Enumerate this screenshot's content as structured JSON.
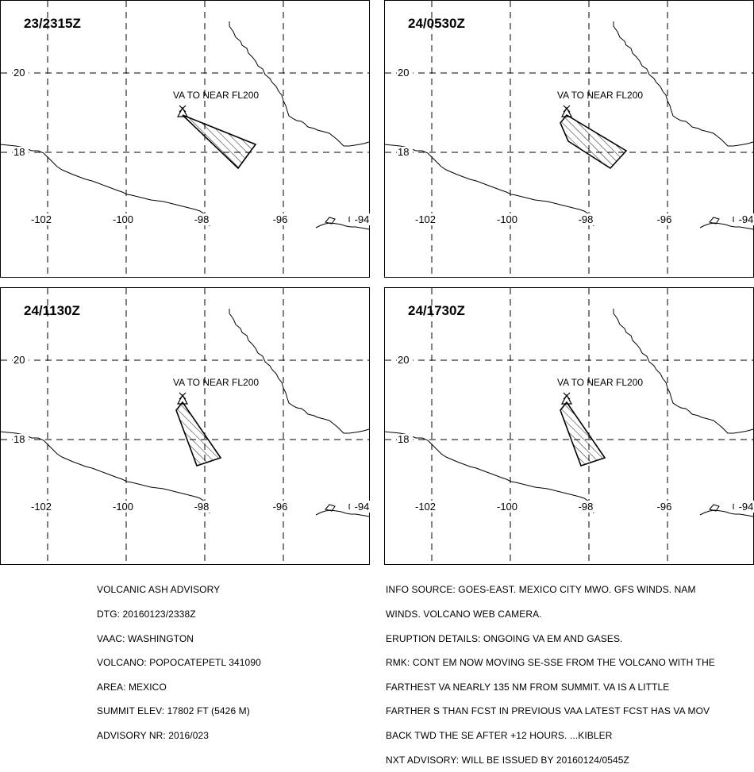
{
  "panels": [
    {
      "time": "23/2315Z"
    },
    {
      "time": "24/0530Z"
    },
    {
      "time": "24/1130Z"
    },
    {
      "time": "24/1730Z"
    }
  ],
  "map": {
    "lat_labels": [
      "20",
      "18"
    ],
    "lon_labels": [
      "-102",
      "-100",
      "-98",
      "-96",
      "-94"
    ],
    "va_label": "VA TO NEAR FL200"
  },
  "advisory_left": [
    "VOLCANIC ASH ADVISORY",
    "DTG: 20160123/2338Z",
    "VAAC: WASHINGTON",
    "VOLCANO: POPOCATEPETL 341090",
    "AREA: MEXICO",
    "SUMMIT ELEV: 17802 FT (5426 M)",
    "ADVISORY NR: 2016/023"
  ],
  "advisory_right": [
    "INFO SOURCE: GOES-EAST. MEXICO CITY MWO. GFS WINDS. NAM",
    "WINDS. VOLCANO WEB CAMERA.",
    "ERUPTION DETAILS: ONGOING VA EM AND GASES.",
    "RMK: CONT EM NOW MOVING SE-SSE FROM THE VOLCANO WITH THE",
    "FARTHEST VA NEARLY 135 NM FROM SUMMIT. VA IS A LITTLE",
    "FARTHER S THAN FCST IN PREVIOUS VAA LATEST FCST HAS VA MOV",
    "BACK TWD THE SE AFTER +12 HOURS. ...KIBLER",
    "NXT ADVISORY: WILL BE ISSUED BY 20160124/0545Z"
  ],
  "colors": {
    "line": "#000000",
    "background": "#ffffff"
  }
}
